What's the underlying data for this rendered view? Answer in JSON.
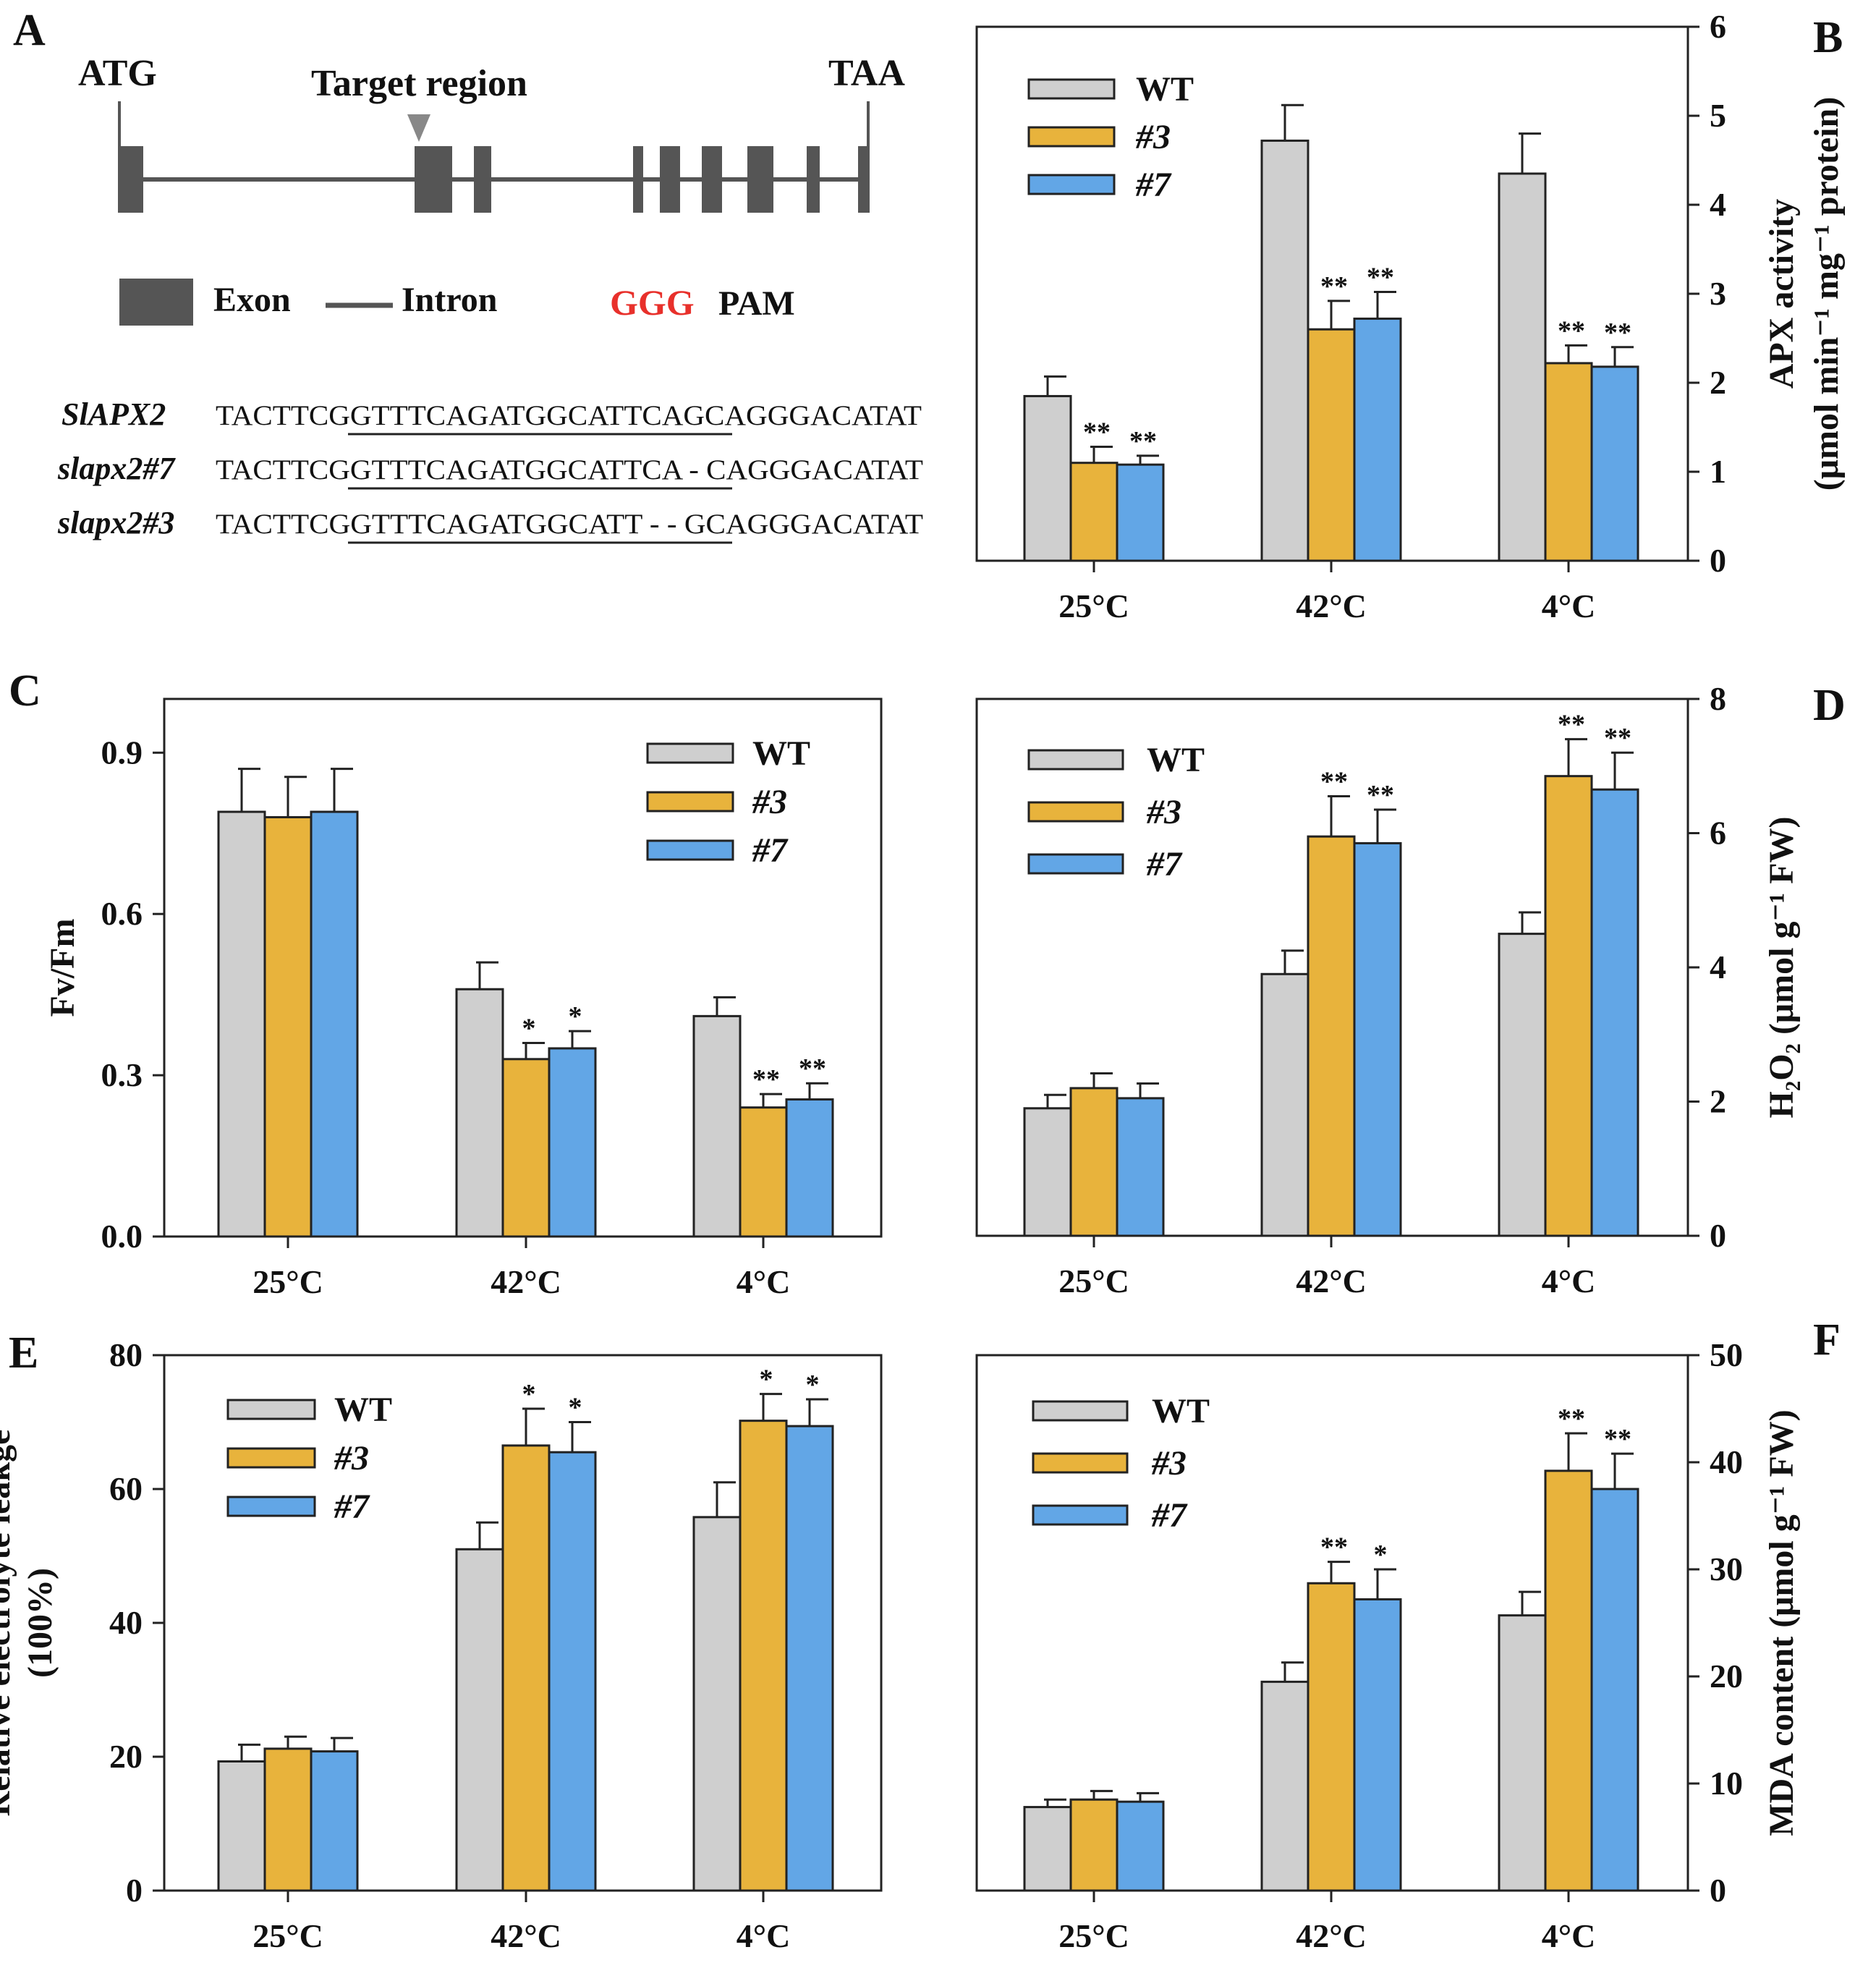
{
  "colors": {
    "wt": "#cfcfcf",
    "m3": "#e8b33c",
    "m7": "#62a6e6",
    "stroke": "#222222",
    "pam": "#e8302b",
    "gene": "#555555"
  },
  "panels": {
    "A": {
      "letter": "A",
      "atg": "ATG",
      "target_region": "Target region",
      "taa": "TAA",
      "legend": {
        "exon": "Exon",
        "intron": "Intron",
        "pam_seq": "GGG",
        "pam": "PAM"
      },
      "sequences": [
        {
          "name": "SlAPX2",
          "seq": "TACTTCGGTTTCAGATGGCATTCAGCAGGGACATAT"
        },
        {
          "name": "slapx2#7",
          "seq": "TACTTCGGTTTCAGATGGCATTCA - CAGGGACATAT"
        },
        {
          "name": "slapx2#3",
          "seq": "TACTTCGGTTTCAGATGGCATT - - GCAGGGACATAT"
        }
      ]
    },
    "B": {
      "letter": "B"
    },
    "C": {
      "letter": "C"
    },
    "D": {
      "letter": "D"
    },
    "E": {
      "letter": "E"
    },
    "F": {
      "letter": "F"
    }
  },
  "chart_data": [
    {
      "panel": "B",
      "type": "bar",
      "categories": [
        "25°C",
        "42°C",
        "4°C"
      ],
      "series": [
        {
          "name": "WT",
          "values": [
            1.85,
            4.72,
            4.35
          ],
          "errors": [
            0.22,
            0.4,
            0.45
          ],
          "sig": [
            "",
            "",
            ""
          ]
        },
        {
          "name": "#3",
          "values": [
            1.1,
            2.6,
            2.22
          ],
          "errors": [
            0.18,
            0.32,
            0.2
          ],
          "sig": [
            "**",
            "**",
            "**"
          ]
        },
        {
          "name": "#7",
          "values": [
            1.08,
            2.72,
            2.18
          ],
          "errors": [
            0.1,
            0.3,
            0.22
          ],
          "sig": [
            "**",
            "**",
            "**"
          ]
        }
      ],
      "ylabel": [
        "APX activity",
        "(μmol min⁻¹ mg⁻¹ protein)"
      ],
      "ylim": [
        0,
        6
      ],
      "yticks": [
        0,
        1,
        2,
        3,
        4,
        5,
        6
      ],
      "yaxis": "right",
      "legend": [
        "WT",
        "#3",
        "#7"
      ]
    },
    {
      "panel": "C",
      "type": "bar",
      "categories": [
        "25°C",
        "42°C",
        "4°C"
      ],
      "series": [
        {
          "name": "WT",
          "values": [
            0.79,
            0.46,
            0.41
          ],
          "errors": [
            0.08,
            0.05,
            0.035
          ],
          "sig": [
            "",
            "",
            ""
          ]
        },
        {
          "name": "#3",
          "values": [
            0.78,
            0.33,
            0.24
          ],
          "errors": [
            0.075,
            0.03,
            0.025
          ],
          "sig": [
            "",
            "*",
            "**"
          ]
        },
        {
          "name": "#7",
          "values": [
            0.79,
            0.35,
            0.255
          ],
          "errors": [
            0.08,
            0.032,
            0.03
          ],
          "sig": [
            "",
            "*",
            "**"
          ]
        }
      ],
      "ylabel": [
        "Fv/Fm"
      ],
      "ylim": [
        0,
        1.0
      ],
      "yticks": [
        0.0,
        0.3,
        0.6,
        0.9
      ],
      "yaxis": "left",
      "legend": [
        "WT",
        "#3",
        "#7"
      ]
    },
    {
      "panel": "D",
      "type": "bar",
      "categories": [
        "25°C",
        "42°C",
        "4°C"
      ],
      "series": [
        {
          "name": "WT",
          "values": [
            1.9,
            3.9,
            4.5
          ],
          "errors": [
            0.2,
            0.35,
            0.32
          ],
          "sig": [
            "",
            "",
            ""
          ]
        },
        {
          "name": "#3",
          "values": [
            2.2,
            5.95,
            6.85
          ],
          "errors": [
            0.22,
            0.6,
            0.55
          ],
          "sig": [
            "",
            "**",
            "**"
          ]
        },
        {
          "name": "#7",
          "values": [
            2.05,
            5.85,
            6.65
          ],
          "errors": [
            0.22,
            0.5,
            0.55
          ],
          "sig": [
            "",
            "**",
            "**"
          ]
        }
      ],
      "ylabel": [
        "H₂O₂ (μmol g⁻¹ FW)"
      ],
      "ylim": [
        0,
        8
      ],
      "yticks": [
        0,
        2,
        4,
        6,
        8
      ],
      "yaxis": "right",
      "legend": [
        "WT",
        "#3",
        "#7"
      ]
    },
    {
      "panel": "E",
      "type": "bar",
      "categories": [
        "25°C",
        "42°C",
        "4°C"
      ],
      "series": [
        {
          "name": "WT",
          "values": [
            19.3,
            51,
            55.8
          ],
          "errors": [
            2.5,
            4,
            5.2
          ],
          "sig": [
            "",
            "",
            ""
          ]
        },
        {
          "name": "#3",
          "values": [
            21.2,
            66.5,
            70.2
          ],
          "errors": [
            1.8,
            5.5,
            4
          ],
          "sig": [
            "",
            "*",
            "*"
          ]
        },
        {
          "name": "#7",
          "values": [
            20.8,
            65.5,
            69.4
          ],
          "errors": [
            2,
            4.5,
            4
          ],
          "sig": [
            "",
            "*",
            "*"
          ]
        }
      ],
      "ylabel": [
        "Relative electrolyte leakge",
        "(100%)"
      ],
      "ylim": [
        0,
        80
      ],
      "yticks": [
        0,
        20,
        40,
        60,
        80
      ],
      "yaxis": "left",
      "legend": [
        "WT",
        "#3",
        "#7"
      ]
    },
    {
      "panel": "F",
      "type": "bar",
      "categories": [
        "25°C",
        "42°C",
        "4°C"
      ],
      "series": [
        {
          "name": "WT",
          "values": [
            7.8,
            19.5,
            25.7
          ],
          "errors": [
            0.7,
            1.8,
            2.2
          ],
          "sig": [
            "",
            "",
            ""
          ]
        },
        {
          "name": "#3",
          "values": [
            8.5,
            28.7,
            39.2
          ],
          "errors": [
            0.8,
            2,
            3.5
          ],
          "sig": [
            "",
            "**",
            "**"
          ]
        },
        {
          "name": "#7",
          "values": [
            8.3,
            27.2,
            37.5
          ],
          "errors": [
            0.8,
            2.8,
            3.3
          ],
          "sig": [
            "",
            "*",
            "**"
          ]
        }
      ],
      "ylabel": [
        "MDA content (μmol g⁻¹ FW)"
      ],
      "ylim": [
        0,
        50
      ],
      "yticks": [
        0,
        10,
        20,
        30,
        40,
        50
      ],
      "yaxis": "right",
      "legend": [
        "WT",
        "#3",
        "#7"
      ]
    }
  ]
}
